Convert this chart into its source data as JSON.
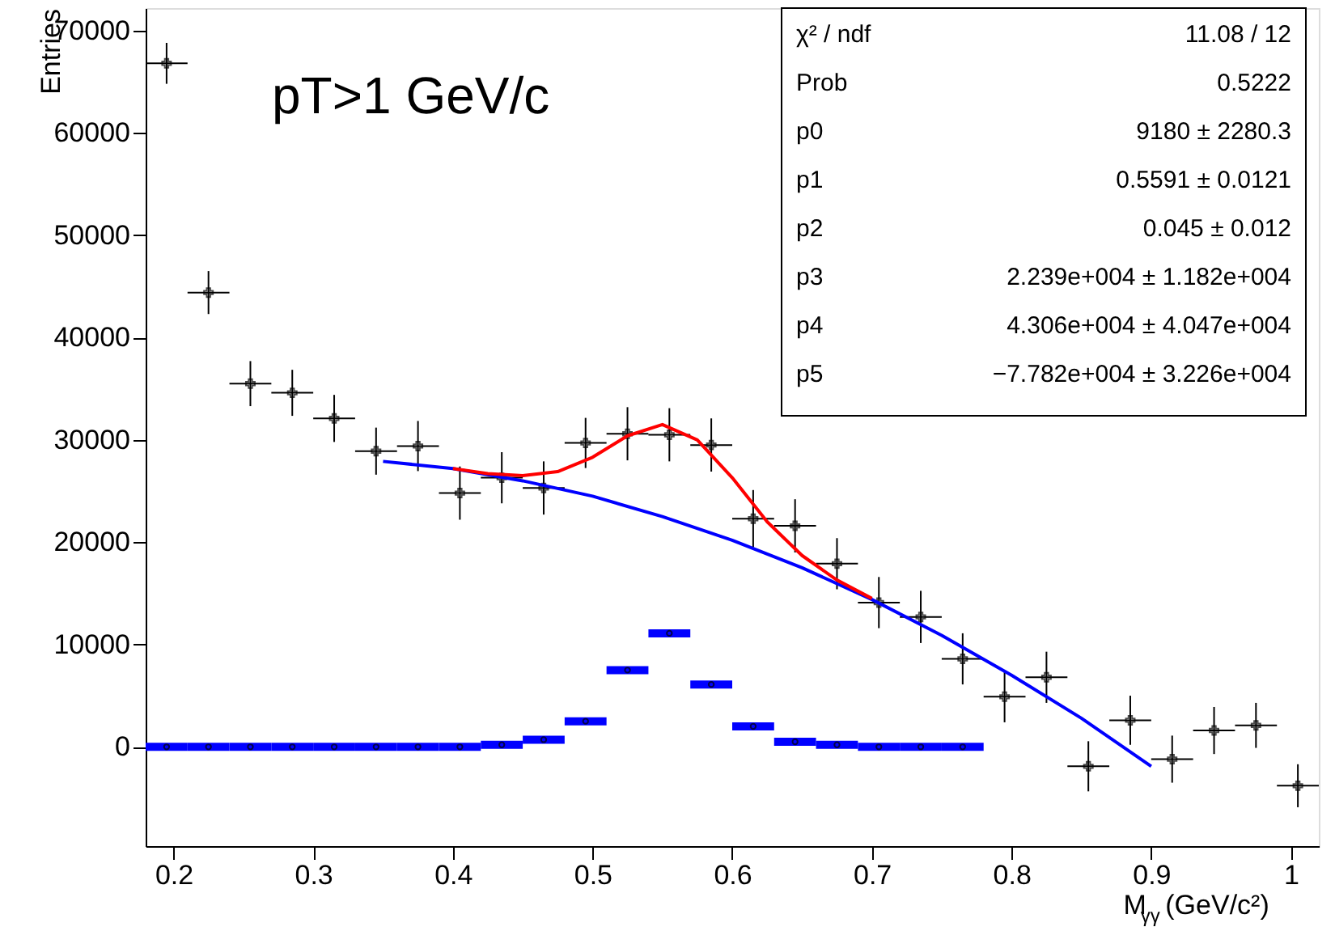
{
  "chart_data": {
    "type": "scatter",
    "xlabel": "M$_{γγ}$ (GeV/c²)",
    "ylabel": "Entries",
    "xlim": [
      0.18,
      1.02
    ],
    "ylim": [
      -9700,
      72200
    ],
    "xticks": [
      0.2,
      0.3,
      0.4,
      0.5,
      0.6,
      0.7,
      0.8,
      0.9,
      1
    ],
    "yticks": [
      0,
      10000,
      20000,
      30000,
      40000,
      50000,
      60000,
      70000
    ],
    "grid": false,
    "marker": "none",
    "annotations": [
      "pT>1 GeV/c",
      "χ² / ndf",
      "11.08 / 12",
      "Prob",
      "0.5222",
      "p0",
      "9180 ± 2280.3",
      "p1",
      "0.5591 ± 0.0121",
      "p2",
      "0.045 ± 0.012",
      "p3",
      "2.239e+004 ± 1.182e+004",
      "p4",
      "4.306e+004 ± 4.047e+004",
      "p5",
      "−7.782e+004 ± 3.226e+004"
    ],
    "series": [
      {
        "color": "#000000",
        "marker": "cross",
        "x": [
          0.195,
          0.225,
          0.255,
          0.285,
          0.315,
          0.345,
          0.375,
          0.405,
          0.435,
          0.465,
          0.495,
          0.525,
          0.555,
          0.585,
          0.615,
          0.645,
          0.675,
          0.705,
          0.735,
          0.765,
          0.795,
          0.825,
          0.855,
          0.885,
          0.915,
          0.945,
          0.975,
          1.005
        ],
        "values": [
          66800,
          44400,
          35500,
          34600,
          32100,
          28900,
          29400,
          24800,
          26300,
          25300,
          29700,
          30600,
          30500,
          29500,
          22300,
          21600,
          17900,
          14100,
          12700,
          8600,
          4900,
          6800,
          -1900,
          2600,
          -1200,
          1600,
          2100,
          -3800
        ],
        "errors": [
          2000,
          2100,
          2200,
          2250,
          2300,
          2300,
          2450,
          2600,
          2500,
          2600,
          2450,
          2600,
          2600,
          2600,
          2800,
          2600,
          2500,
          2500,
          2550,
          2500,
          2500,
          2500,
          2450,
          2400,
          2300,
          2300,
          2200,
          2100
        ],
        "xerrors": [
          0.015,
          0.015,
          0.015,
          0.015,
          0.015,
          0.015,
          0.015,
          0.015,
          0.015,
          0.015,
          0.015,
          0.015,
          0.015,
          0.015,
          0.015,
          0.015,
          0.015,
          0.015,
          0.015,
          0.015,
          0.015,
          0.015,
          0.015,
          0.015,
          0.015,
          0.015,
          0.015,
          0.015
        ]
      },
      {
        "type": "scatter",
        "color": "#0000ff",
        "marker": "circle",
        "x": [
          0.195,
          0.225,
          0.255,
          0.285,
          0.315,
          0.345,
          0.375,
          0.405,
          0.435,
          0.465,
          0.495,
          0.525,
          0.555,
          0.585,
          0.615,
          0.645,
          0.675,
          0.705,
          0.735,
          0.765
        ],
        "values": [
          0,
          0,
          0,
          0,
          0,
          0,
          0,
          0,
          200,
          700,
          2500,
          7500,
          11100,
          6100,
          2000,
          500,
          200,
          0,
          0,
          0
        ],
        "xerrors": [
          0.015,
          0.015,
          0.015,
          0.015,
          0.015,
          0.015,
          0.015,
          0.015,
          0.015,
          0.015,
          0.015,
          0.015,
          0.015,
          0.015,
          0.015,
          0.015,
          0.015,
          0.015,
          0.015,
          0.015
        ]
      },
      {
        "type": "line",
        "color": "#0000ff",
        "x": [
          0.35,
          0.4,
          0.45,
          0.5,
          0.55,
          0.6,
          0.65,
          0.7,
          0.75,
          0.8,
          0.85,
          0.9
        ],
        "values": [
          27900,
          27200,
          26000,
          24500,
          22500,
          20200,
          17500,
          14400,
          10900,
          7000,
          2800,
          -1900
        ]
      },
      {
        "type": "line",
        "color": "#ff0000",
        "x": [
          0.4,
          0.425,
          0.45,
          0.475,
          0.5,
          0.525,
          0.55,
          0.575,
          0.6,
          0.625,
          0.65,
          0.675,
          0.7
        ],
        "values": [
          27200,
          26700,
          26500,
          26900,
          28300,
          30400,
          31500,
          30000,
          26300,
          22000,
          18700,
          16300,
          14500
        ]
      }
    ]
  }
}
